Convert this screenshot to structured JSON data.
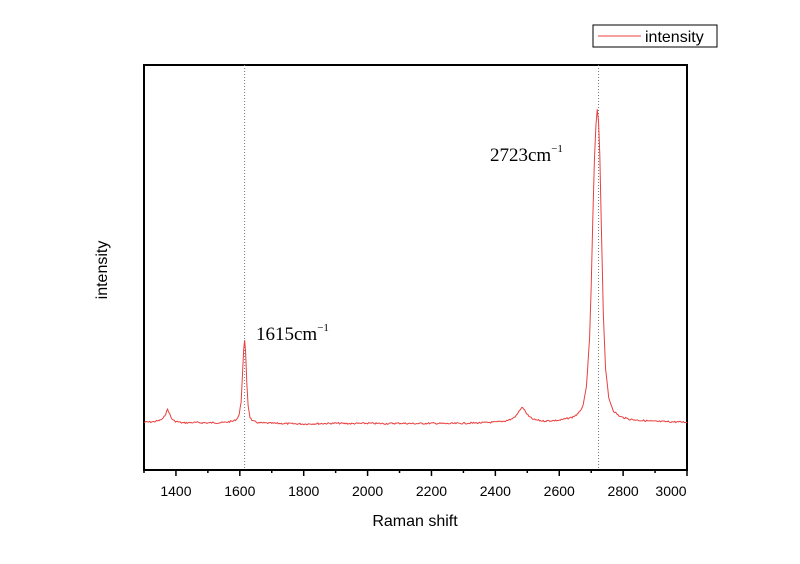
{
  "chart_data": {
    "type": "line",
    "title": "",
    "xlabel": "Raman shift",
    "ylabel": "intensity",
    "xlim": [
      1300,
      3000
    ],
    "ylim": [
      0,
      1000
    ],
    "xticks": [
      1400,
      1600,
      1800,
      2000,
      2200,
      2400,
      2600,
      2800,
      3000
    ],
    "grid": false,
    "legend_position": "top-right",
    "series": [
      {
        "name": "intensity",
        "color": "#e8403f",
        "x": [
          1300,
          1330,
          1350,
          1360,
          1368,
          1374,
          1380,
          1386,
          1395,
          1420,
          1460,
          1500,
          1550,
          1580,
          1590,
          1598,
          1604,
          1608,
          1612,
          1615,
          1618,
          1622,
          1626,
          1632,
          1640,
          1660,
          1700,
          1750,
          1800,
          1850,
          1900,
          1950,
          2000,
          2050,
          2100,
          2150,
          2200,
          2250,
          2300,
          2350,
          2400,
          2430,
          2450,
          2465,
          2475,
          2482,
          2488,
          2495,
          2505,
          2520,
          2550,
          2600,
          2640,
          2660,
          2675,
          2685,
          2695,
          2700,
          2705,
          2710,
          2715,
          2719,
          2723,
          2727,
          2732,
          2738,
          2745,
          2755,
          2770,
          2790,
          2820,
          2850,
          2900,
          2950,
          3000
        ],
        "y": [
          155,
          156,
          160,
          165,
          178,
          190,
          178,
          165,
          158,
          153,
          154,
          153,
          154,
          158,
          163,
          175,
          210,
          280,
          350,
          375,
          345,
          260,
          200,
          168,
          158,
          153,
          152,
          151,
          150,
          151,
          152,
          151,
          152,
          151,
          152,
          151,
          152,
          151,
          152,
          153,
          155,
          158,
          163,
          172,
          185,
          195,
          192,
          182,
          170,
          162,
          158,
          160,
          168,
          178,
          200,
          250,
          380,
          520,
          700,
          860,
          960,
          1000,
          970,
          880,
          680,
          450,
          300,
          220,
          185,
          170,
          163,
          160,
          157,
          156,
          155
        ]
      }
    ],
    "reference_lines_x": [
      1615,
      2723
    ],
    "annotations": [
      {
        "base": "1615cm",
        "sup": "−1",
        "x": 1615
      },
      {
        "base": "2723cm",
        "sup": "−1",
        "x": 2723
      }
    ]
  }
}
